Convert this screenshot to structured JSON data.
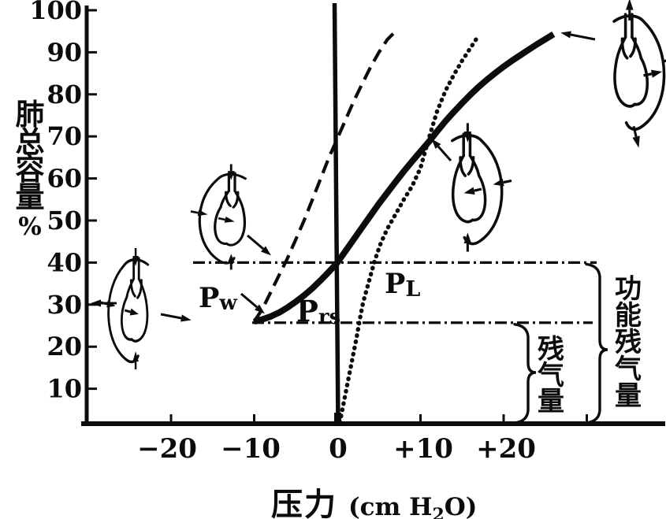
{
  "figure": {
    "y_axis_title": "肺总容量",
    "y_axis_unit": "%",
    "x_title": "压力",
    "x_unit_pre": "(cm H",
    "x_unit_sub": "2",
    "x_unit_post": "O)"
  },
  "axis": {
    "y_tick_labels": [
      "100",
      "90",
      "80",
      "70",
      "60",
      "50",
      "40",
      "30",
      "20",
      "10"
    ],
    "x_tick_labels": [
      "−20",
      "−10",
      "0",
      "+10",
      "+20"
    ]
  },
  "annotations": {
    "pw_main": "P",
    "pw_sub": "w",
    "prs_main": "P",
    "prs_sub": "rs",
    "pl_main": "P",
    "pl_sub": "L",
    "frc_label": "功能残气量",
    "rv_label": "残气量"
  },
  "icons": [
    {
      "name": "lung-chest-rv-icon",
      "arrows": "inward"
    },
    {
      "name": "lung-chest-low-volume-icon",
      "arrows": "inward"
    },
    {
      "name": "lung-chest-mid-volume-icon",
      "arrows": "inward"
    },
    {
      "name": "lung-chest-tlc-icon",
      "arrows": "outward"
    }
  ],
  "chart_data": {
    "type": "line",
    "title": "",
    "xlabel": "压力 (cm H2O)",
    "ylabel": "肺总容量 %",
    "xlim": [
      -30,
      40
    ],
    "ylim": [
      0,
      102
    ],
    "grid": false,
    "x_tick_values": [
      -20,
      -10,
      0,
      10,
      20
    ],
    "x_extra_unlabeled_tick": 30,
    "y_tick_values": [
      100,
      90,
      80,
      70,
      60,
      50,
      40,
      30,
      20,
      10
    ],
    "series": [
      {
        "name": "Pw",
        "style": "long-dash",
        "points": [
          [
            -10,
            26
          ],
          [
            -9,
            29
          ],
          [
            -8,
            33
          ],
          [
            -7,
            37
          ],
          [
            -6,
            41
          ],
          [
            -5,
            45.5
          ],
          [
            -4,
            50
          ],
          [
            -3,
            55
          ],
          [
            -2,
            60
          ],
          [
            -1,
            65
          ],
          [
            0,
            69.5
          ],
          [
            1,
            74
          ],
          [
            2,
            78.5
          ],
          [
            3,
            82.5
          ],
          [
            4,
            86.5
          ],
          [
            5,
            90
          ],
          [
            6,
            93
          ],
          [
            7,
            95
          ]
        ]
      },
      {
        "name": "Prs",
        "style": "solid-thick",
        "points": [
          [
            -10,
            26
          ],
          [
            -9,
            26.5
          ],
          [
            -8,
            27.2
          ],
          [
            -7,
            28.1
          ],
          [
            -6,
            29.3
          ],
          [
            -5,
            30.7
          ],
          [
            -4,
            32.2
          ],
          [
            -3,
            33.9
          ],
          [
            -2,
            35.8
          ],
          [
            -1,
            37.8
          ],
          [
            0,
            40
          ],
          [
            1,
            42.8
          ],
          [
            2,
            45.6
          ],
          [
            3,
            48.4
          ],
          [
            4,
            51.2
          ],
          [
            5,
            54
          ],
          [
            6,
            56.6
          ],
          [
            7,
            59.2
          ],
          [
            8,
            61.7
          ],
          [
            9,
            64.1
          ],
          [
            10,
            66.4
          ],
          [
            11,
            68.7
          ],
          [
            12,
            71.2
          ],
          [
            13,
            73.6
          ],
          [
            14,
            75.8
          ],
          [
            15,
            77.9
          ],
          [
            16,
            79.9
          ],
          [
            17,
            81.8
          ],
          [
            18,
            83.5
          ],
          [
            19,
            85.1
          ],
          [
            20,
            86.6
          ],
          [
            21,
            88
          ],
          [
            22,
            89.3
          ],
          [
            23,
            90.6
          ],
          [
            24,
            91.9
          ],
          [
            25,
            93.1
          ],
          [
            26,
            94.3
          ]
        ]
      },
      {
        "name": "PL",
        "style": "dotted",
        "points": [
          [
            0.3,
            2
          ],
          [
            0.7,
            6
          ],
          [
            1.1,
            10
          ],
          [
            1.5,
            14
          ],
          [
            1.9,
            18
          ],
          [
            2.3,
            22
          ],
          [
            2.7,
            26.5
          ],
          [
            3.1,
            30.5
          ],
          [
            3.8,
            35.5
          ],
          [
            4.5,
            40.5
          ],
          [
            5.2,
            44.5
          ],
          [
            6,
            48
          ],
          [
            7,
            51.5
          ],
          [
            8,
            55
          ],
          [
            9,
            58.2
          ],
          [
            10,
            62.5
          ],
          [
            11,
            69.5
          ],
          [
            12,
            76
          ],
          [
            13,
            80.8
          ],
          [
            14,
            84.6
          ],
          [
            15,
            88
          ],
          [
            16,
            91
          ],
          [
            16.8,
            93.4
          ]
        ]
      }
    ],
    "hlines": [
      {
        "volume_pct": 40,
        "style": "dash-dot"
      },
      {
        "volume_pct": 25.7,
        "style": "dash-dot"
      }
    ],
    "braces": [
      {
        "label": "功能残气量",
        "from_volume_pct": 0,
        "to_volume_pct": 40
      },
      {
        "label": "残气量",
        "from_volume_pct": 0,
        "to_volume_pct": 25.7
      }
    ]
  }
}
